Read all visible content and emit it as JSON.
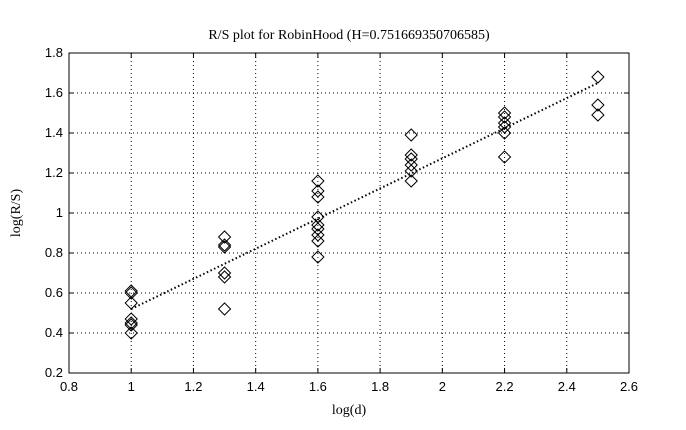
{
  "chart_data": {
    "type": "scatter",
    "title": "R/S plot for RobinHood (H=0.751669350706585)",
    "xlabel": "log(d)",
    "ylabel": "log(R/S)",
    "xlim": [
      0.8,
      2.6
    ],
    "ylim": [
      0.2,
      1.8
    ],
    "xticks": [
      "0.8",
      "1",
      "1.2",
      "1.4",
      "1.6",
      "1.8",
      "2",
      "2.2",
      "2.4",
      "2.6"
    ],
    "yticks": [
      "0.2",
      "0.4",
      "0.6",
      "0.8",
      "1",
      "1.2",
      "1.4",
      "1.6",
      "1.8"
    ],
    "grid": true,
    "marker": "diamond",
    "series": [
      {
        "points": [
          [
            1.0,
            0.61
          ],
          [
            1.0,
            0.6
          ],
          [
            1.0,
            0.55
          ],
          [
            1.0,
            0.47
          ],
          [
            1.0,
            0.45
          ],
          [
            1.0,
            0.44
          ],
          [
            1.0,
            0.4
          ],
          [
            1.3,
            0.88
          ],
          [
            1.3,
            0.84
          ],
          [
            1.3,
            0.83
          ],
          [
            1.3,
            0.7
          ],
          [
            1.3,
            0.68
          ],
          [
            1.3,
            0.52
          ],
          [
            1.6,
            1.16
          ],
          [
            1.6,
            1.11
          ],
          [
            1.6,
            1.08
          ],
          [
            1.6,
            0.98
          ],
          [
            1.6,
            0.94
          ],
          [
            1.6,
            0.92
          ],
          [
            1.6,
            0.89
          ],
          [
            1.6,
            0.86
          ],
          [
            1.6,
            0.78
          ],
          [
            1.9,
            1.39
          ],
          [
            1.9,
            1.29
          ],
          [
            1.9,
            1.27
          ],
          [
            1.9,
            1.24
          ],
          [
            1.9,
            1.21
          ],
          [
            1.9,
            1.16
          ],
          [
            2.2,
            1.5
          ],
          [
            2.2,
            1.48
          ],
          [
            2.2,
            1.45
          ],
          [
            2.2,
            1.43
          ],
          [
            2.2,
            1.4
          ],
          [
            2.2,
            1.28
          ],
          [
            2.5,
            1.68
          ],
          [
            2.5,
            1.54
          ],
          [
            2.5,
            1.49
          ]
        ]
      }
    ],
    "fit_line": {
      "x": [
        1.0,
        2.5
      ],
      "y": [
        0.52,
        1.65
      ]
    }
  }
}
